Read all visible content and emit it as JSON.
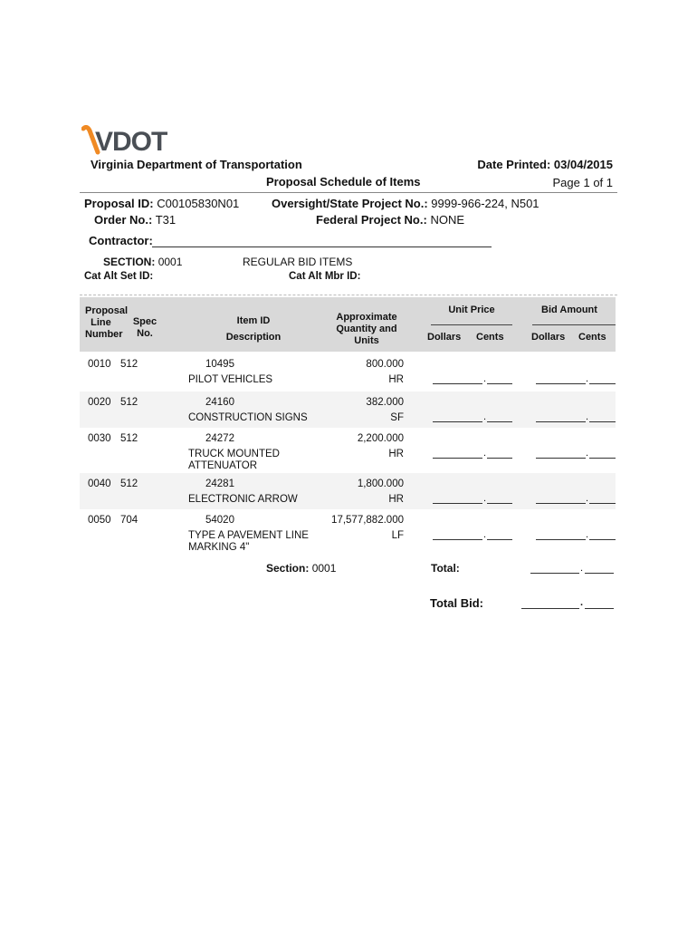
{
  "logo": {
    "text": "VDOT",
    "colors": {
      "swoosh": "#f08a24",
      "letters": "#4a4f55"
    }
  },
  "header": {
    "agency": "Virginia Department of Transportation",
    "title": "Proposal Schedule of Items",
    "date_label": "Date Printed:",
    "date_value": "03/04/2015",
    "page": "Page 1 of 1"
  },
  "info": {
    "proposal_id_label": "Proposal ID:",
    "proposal_id": "C00105830N01",
    "order_label": "Order No.:",
    "order": "T31",
    "oversight_label": "Oversight/State Project No.:",
    "oversight": "9999-966-224, N501",
    "federal_label": "Federal Project No.:",
    "federal": "NONE",
    "contractor_label": "Contractor:",
    "section_label": "SECTION:",
    "section": "0001",
    "section_name": "REGULAR BID ITEMS",
    "cat_set_label": "Cat Alt Set ID:",
    "cat_mbr_label": "Cat Alt Mbr ID:"
  },
  "columns": {
    "proposal": "Proposal",
    "line": "Line",
    "number": "Number",
    "spec": "Spec",
    "no": "No.",
    "item_id": "Item ID",
    "description": "Description",
    "qty1": "Approximate",
    "qty2": "Quantity and",
    "qty3": "Units",
    "unit_price": "Unit Price",
    "bid_amount": "Bid Amount",
    "dollars": "Dollars",
    "cents": "Cents"
  },
  "rows": [
    {
      "line": "0010",
      "spec": "512",
      "item": "10495",
      "desc1": "PILOT VEHICLES",
      "desc2": "",
      "qty": "800.000",
      "unit": "HR"
    },
    {
      "line": "0020",
      "spec": "512",
      "item": "24160",
      "desc1": "CONSTRUCTION SIGNS",
      "desc2": "",
      "qty": "382.000",
      "unit": "SF"
    },
    {
      "line": "0030",
      "spec": "512",
      "item": "24272",
      "desc1": "TRUCK MOUNTED",
      "desc2": "ATTENUATOR",
      "qty": "2,200.000",
      "unit": "HR"
    },
    {
      "line": "0040",
      "spec": "512",
      "item": "24281",
      "desc1": "ELECTRONIC ARROW",
      "desc2": "",
      "qty": "1,800.000",
      "unit": "HR"
    },
    {
      "line": "0050",
      "spec": "704",
      "item": "54020",
      "desc1": "TYPE A PAVEMENT LINE",
      "desc2": "MARKING 4\"",
      "qty": "17,577,882.000",
      "unit": "LF"
    }
  ],
  "footer": {
    "section_label": "Section:",
    "section": "0001",
    "total_label": "Total:",
    "total_bid_label": "Total Bid:",
    "dot": "."
  }
}
